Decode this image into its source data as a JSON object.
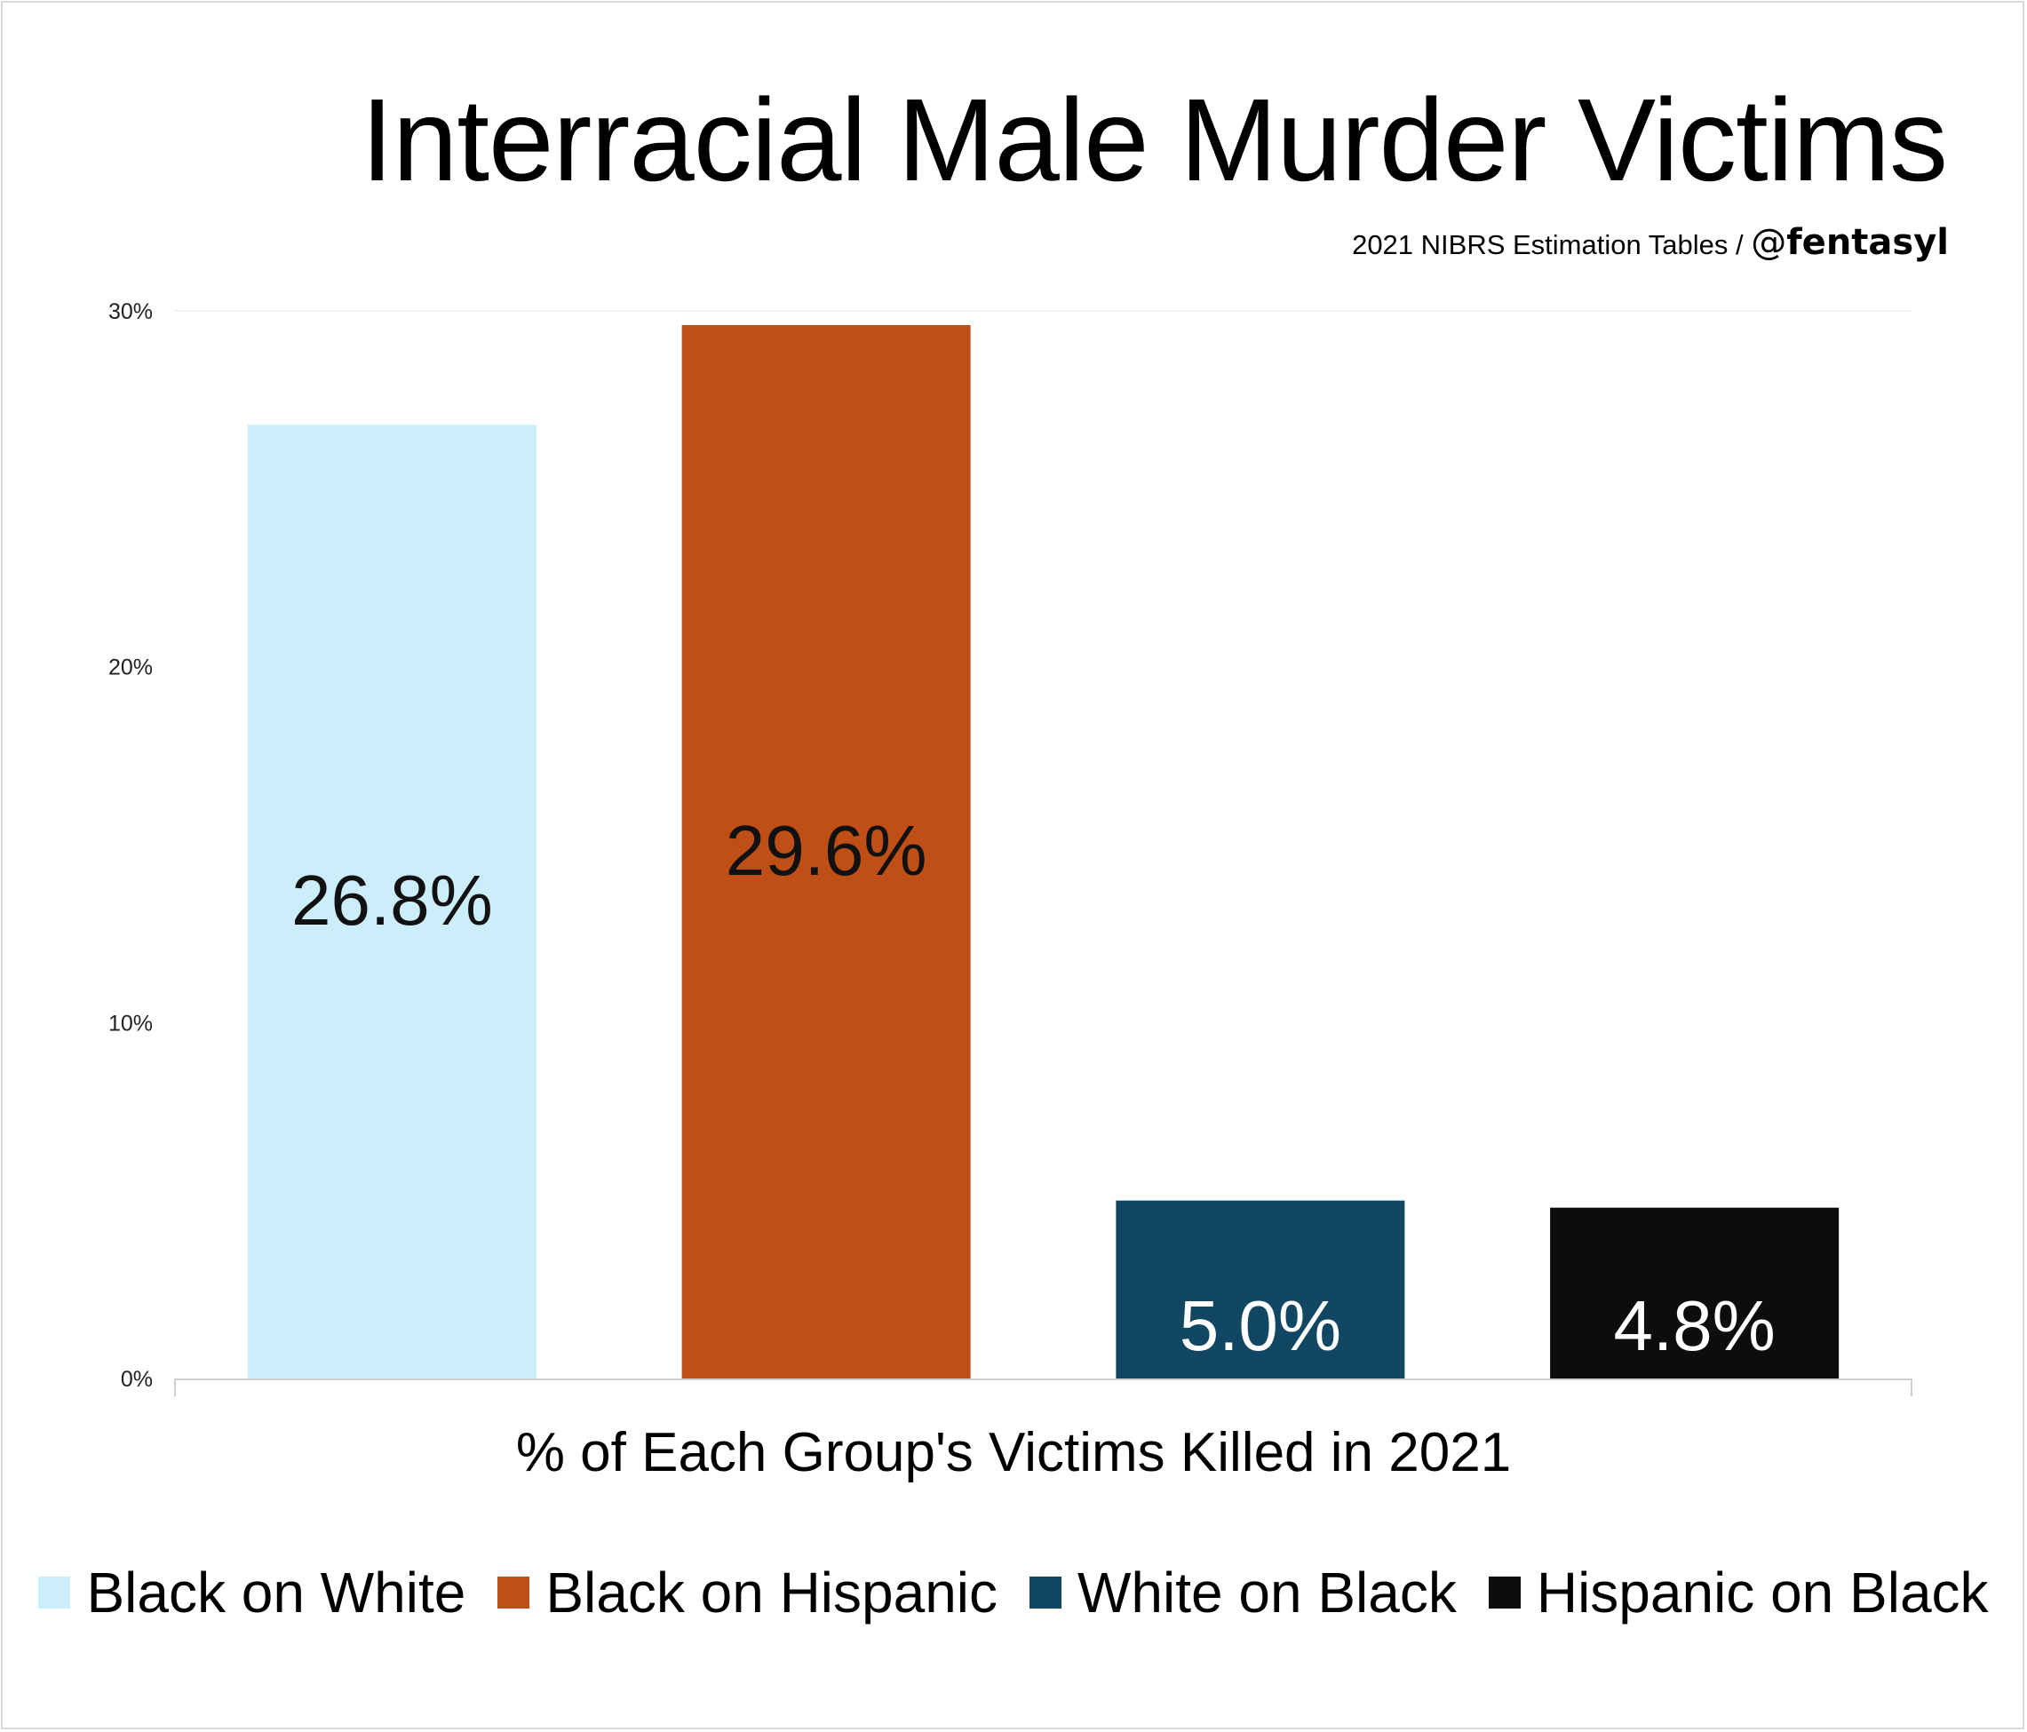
{
  "chart_data": {
    "type": "bar",
    "title": "Interracial Male Murder Victims",
    "subtitle": "2021 NIBRS Estimation Tables",
    "subtitle_separator": "/",
    "handle_at": "@",
    "handle_name": "fentasyl",
    "xlabel": "% of Each Group's Victims Killed in 2021",
    "ylabel": "",
    "ylim": [
      0,
      30
    ],
    "yticks": [
      0,
      10,
      20,
      30
    ],
    "ytick_labels": [
      "0%",
      "10%",
      "20%",
      "30%"
    ],
    "grid": false,
    "legend_position": "bottom",
    "categories": [
      "Black on White",
      "Black on Hispanic",
      "White on Black",
      "Hispanic on Black"
    ],
    "values": [
      26.8,
      29.6,
      5.0,
      4.8
    ],
    "data_labels": [
      "26.8%",
      "29.6%",
      "5.0%",
      "4.8%"
    ],
    "colors": [
      "#cceefb",
      "#bf4f16",
      "#114762",
      "#0d0d0d"
    ],
    "label_colors": [
      "#111111",
      "#111111",
      "#ffffff",
      "#ffffff"
    ]
  }
}
